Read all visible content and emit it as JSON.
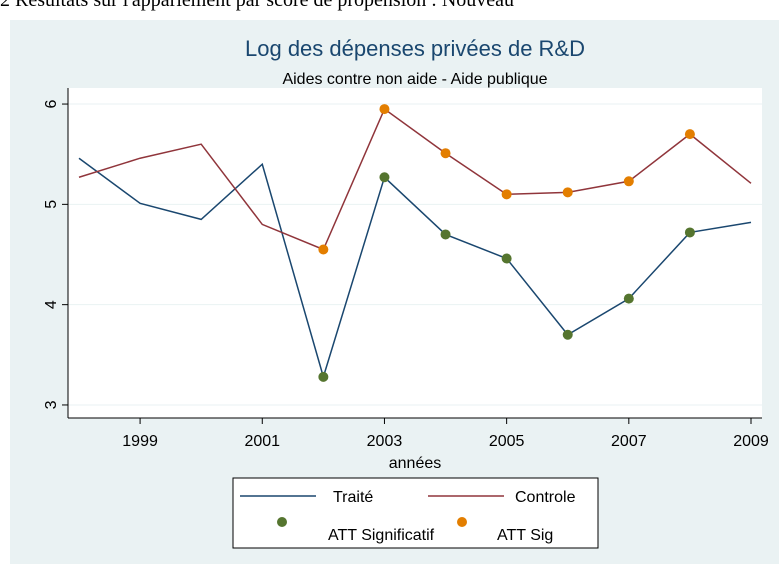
{
  "caption": "2 Résultats sur l'appariement par score de propension : Nouveau",
  "chart_data": {
    "type": "line",
    "title": "Log des dépenses privées de R&D",
    "subtitle": "Aides contre non aide - Aide publique",
    "x_label": "années",
    "x": [
      1998,
      1999,
      2000,
      2001,
      2002,
      2003,
      2004,
      2005,
      2006,
      2007,
      2008,
      2009
    ],
    "series": [
      {
        "name": "Traité",
        "color": "#1a476f",
        "style": "line",
        "values": [
          5.46,
          5.01,
          4.85,
          5.4,
          3.28,
          5.27,
          4.7,
          4.46,
          3.7,
          4.06,
          4.72,
          4.82
        ]
      },
      {
        "name": "Controle",
        "color": "#90353b",
        "style": "line",
        "values": [
          5.27,
          5.46,
          5.6,
          4.8,
          4.55,
          5.95,
          5.51,
          5.1,
          5.12,
          5.23,
          5.7,
          5.21
        ]
      },
      {
        "name": "ATT Significatif",
        "color": "#55752f",
        "style": "marker",
        "values": [
          null,
          null,
          null,
          null,
          3.28,
          5.27,
          4.7,
          4.46,
          3.7,
          4.06,
          4.72,
          null
        ]
      },
      {
        "name": "ATT Sig",
        "color": "#e37e00",
        "style": "marker",
        "values": [
          null,
          null,
          null,
          null,
          4.55,
          5.95,
          5.51,
          5.1,
          5.12,
          5.23,
          5.7,
          null
        ]
      }
    ],
    "xlim": [
      1997.82,
      2009.18
    ],
    "xticks": [
      1999,
      2001,
      2003,
      2005,
      2007,
      2009
    ],
    "ylim": [
      2.87,
      6.16
    ],
    "yticks": [
      3,
      4,
      5,
      6
    ],
    "grid": true
  }
}
